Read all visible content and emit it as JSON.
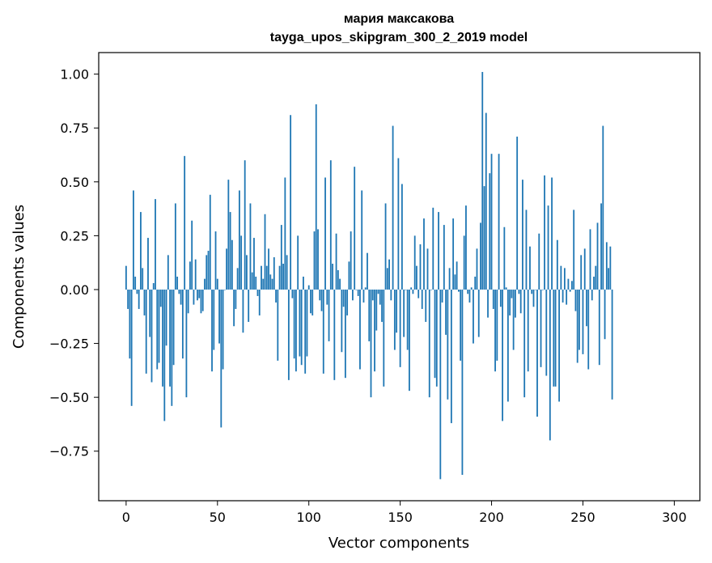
{
  "chart_data": {
    "type": "bar",
    "title": "мария максакова",
    "subtitle": "tayga_upos_skipgram_300_2_2019 model",
    "xlabel": "Vector components",
    "ylabel": "Components values",
    "xlim": [
      -15,
      314
    ],
    "ylim": [
      -0.98,
      1.1
    ],
    "xticks": [
      0,
      50,
      100,
      150,
      200,
      250,
      300
    ],
    "yticks": [
      -0.75,
      -0.5,
      -0.25,
      0.0,
      0.25,
      0.5,
      0.75,
      1.0
    ],
    "ytick_labels": [
      "−0.75",
      "−0.50",
      "−0.25",
      "0.00",
      "0.25",
      "0.50",
      "0.75",
      "1.00"
    ],
    "bar_color": "#1f77b4",
    "values": [
      0.11,
      -0.09,
      -0.32,
      -0.54,
      0.46,
      0.06,
      -0.02,
      -0.09,
      0.36,
      0.1,
      -0.12,
      -0.39,
      0.24,
      -0.22,
      -0.43,
      0.03,
      0.42,
      -0.37,
      -0.34,
      -0.08,
      -0.45,
      -0.61,
      -0.26,
      0.16,
      -0.45,
      -0.54,
      -0.35,
      0.4,
      0.06,
      -0.02,
      -0.07,
      -0.32,
      0.62,
      -0.5,
      -0.11,
      0.13,
      0.32,
      -0.07,
      0.14,
      -0.05,
      -0.04,
      -0.11,
      -0.1,
      0.05,
      0.16,
      0.18,
      0.44,
      -0.38,
      -0.28,
      0.27,
      0.05,
      -0.25,
      -0.64,
      -0.37,
      0.0,
      0.19,
      0.51,
      0.36,
      0.23,
      -0.17,
      -0.09,
      0.1,
      0.46,
      0.25,
      -0.2,
      0.6,
      0.16,
      -0.15,
      0.4,
      0.08,
      0.24,
      0.06,
      -0.03,
      -0.12,
      0.11,
      0.05,
      0.35,
      0.11,
      0.19,
      0.07,
      0.05,
      0.15,
      -0.06,
      -0.33,
      0.11,
      0.3,
      0.12,
      0.52,
      0.16,
      -0.42,
      0.81,
      -0.04,
      -0.32,
      -0.38,
      0.25,
      -0.31,
      -0.35,
      0.06,
      -0.39,
      -0.31,
      0.02,
      -0.11,
      -0.12,
      0.27,
      0.86,
      0.28,
      -0.05,
      -0.1,
      -0.39,
      0.52,
      -0.07,
      -0.24,
      0.6,
      0.12,
      -0.42,
      0.26,
      0.09,
      0.05,
      -0.29,
      -0.08,
      -0.41,
      -0.12,
      0.13,
      0.27,
      -0.05,
      0.57,
      0.0,
      -0.03,
      -0.37,
      0.46,
      -0.06,
      0.01,
      0.17,
      -0.24,
      -0.5,
      -0.05,
      -0.38,
      -0.19,
      -0.02,
      -0.07,
      -0.15,
      -0.45,
      0.4,
      0.1,
      0.14,
      -0.05,
      0.76,
      -0.28,
      -0.2,
      0.61,
      -0.36,
      0.49,
      -0.22,
      0.0,
      -0.28,
      -0.47,
      0.01,
      -0.02,
      0.25,
      0.11,
      -0.04,
      0.21,
      -0.09,
      0.33,
      -0.15,
      0.19,
      -0.5,
      0.0,
      0.38,
      -0.41,
      -0.45,
      0.36,
      -0.88,
      -0.06,
      0.3,
      -0.21,
      -0.51,
      0.1,
      -0.62,
      0.33,
      0.07,
      0.13,
      -0.01,
      -0.33,
      -0.86,
      0.25,
      0.39,
      -0.02,
      -0.06,
      0.01,
      -0.25,
      0.06,
      0.19,
      -0.22,
      0.31,
      1.01,
      0.48,
      0.82,
      -0.13,
      0.54,
      0.63,
      -0.09,
      -0.38,
      -0.33,
      0.63,
      -0.08,
      -0.61,
      0.29,
      0.01,
      -0.52,
      -0.12,
      -0.04,
      -0.28,
      -0.13,
      0.71,
      -0.02,
      -0.11,
      0.51,
      -0.5,
      0.37,
      -0.38,
      0.2,
      -0.02,
      -0.08,
      0.0,
      -0.59,
      0.26,
      -0.36,
      0.0,
      0.53,
      -0.4,
      0.39,
      -0.7,
      0.52,
      -0.45,
      -0.45,
      0.23,
      -0.52,
      0.11,
      -0.06,
      0.1,
      -0.07,
      0.05,
      -0.01,
      0.04,
      0.37,
      -0.1,
      -0.34,
      -0.28,
      0.16,
      -0.3,
      0.19,
      -0.17,
      -0.37,
      0.28,
      -0.05,
      0.06,
      0.11,
      0.31,
      -0.35,
      0.4,
      0.76,
      -0.23,
      0.22,
      0.1,
      0.2,
      -0.51
    ]
  }
}
